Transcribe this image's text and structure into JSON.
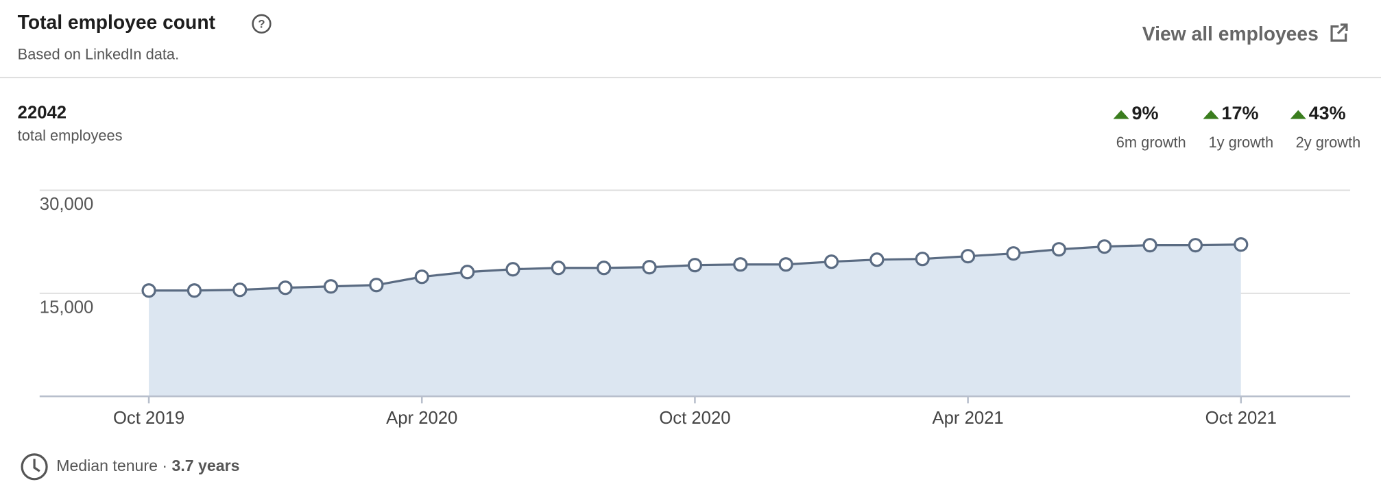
{
  "header": {
    "title": "Total employee count",
    "subtitle": "Based on LinkedIn data.",
    "link": "View all employees"
  },
  "summary": {
    "count": "22042",
    "count_label": "total employees",
    "growth": [
      {
        "value": "9%",
        "label": "6m growth"
      },
      {
        "value": "17%",
        "label": "1y growth"
      },
      {
        "value": "43%",
        "label": "2y growth"
      }
    ]
  },
  "chart_data": {
    "type": "area",
    "categories": [
      "Oct 2019",
      null,
      null,
      null,
      null,
      null,
      "Apr 2020",
      null,
      null,
      null,
      null,
      null,
      "Oct 2020",
      null,
      null,
      null,
      null,
      null,
      "Apr 2021",
      null,
      null,
      null,
      null,
      null,
      "Oct 2021"
    ],
    "values": [
      15400,
      15400,
      15500,
      15800,
      16000,
      16200,
      17400,
      18100,
      18500,
      18700,
      18700,
      18800,
      19100,
      19200,
      19200,
      19600,
      19900,
      20000,
      20400,
      20800,
      21400,
      21800,
      22000,
      22000,
      22100
    ],
    "color": "#5a6b82",
    "fill": "#dce6f1",
    "ylim": [
      0,
      30000
    ],
    "yticks": [
      {
        "value": 15000,
        "label": "15,000"
      },
      {
        "value": 30000,
        "label": "30,000"
      }
    ],
    "grid": true
  },
  "footer": {
    "tenure_label": "Median tenure ·",
    "tenure_value": "3.7 years"
  }
}
